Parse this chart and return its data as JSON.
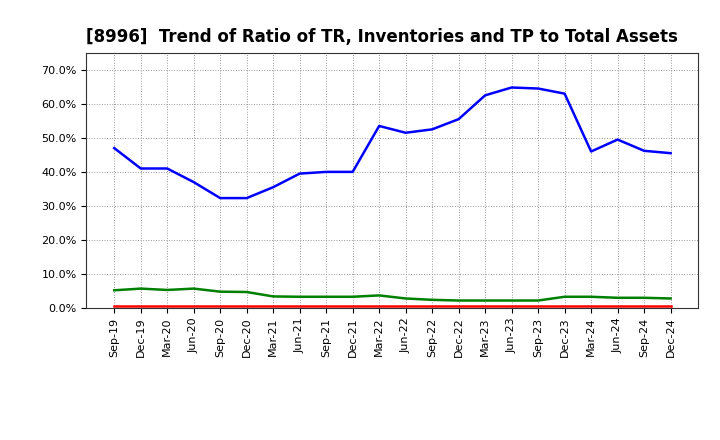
{
  "title": "[8996]  Trend of Ratio of TR, Inventories and TP to Total Assets",
  "x_labels": [
    "Sep-19",
    "Dec-19",
    "Mar-20",
    "Jun-20",
    "Sep-20",
    "Dec-20",
    "Mar-21",
    "Jun-21",
    "Sep-21",
    "Dec-21",
    "Mar-22",
    "Jun-22",
    "Sep-22",
    "Dec-22",
    "Mar-23",
    "Jun-23",
    "Sep-23",
    "Dec-23",
    "Mar-24",
    "Jun-24",
    "Sep-24",
    "Dec-24"
  ],
  "inventories": [
    0.47,
    0.41,
    0.41,
    0.37,
    0.323,
    0.323,
    0.355,
    0.395,
    0.4,
    0.4,
    0.535,
    0.515,
    0.525,
    0.555,
    0.625,
    0.648,
    0.645,
    0.63,
    0.46,
    0.495,
    0.462,
    0.455
  ],
  "trade_receivables": [
    0.007,
    0.007,
    0.007,
    0.007,
    0.007,
    0.007,
    0.007,
    0.007,
    0.007,
    0.007,
    0.007,
    0.007,
    0.007,
    0.007,
    0.007,
    0.007,
    0.007,
    0.007,
    0.007,
    0.007,
    0.007,
    0.007
  ],
  "trade_payables": [
    0.052,
    0.057,
    0.053,
    0.057,
    0.048,
    0.047,
    0.034,
    0.033,
    0.033,
    0.033,
    0.037,
    0.028,
    0.024,
    0.022,
    0.022,
    0.022,
    0.022,
    0.033,
    0.033,
    0.03,
    0.03,
    0.028
  ],
  "ylim": [
    0.0,
    0.75
  ],
  "yticks": [
    0.0,
    0.1,
    0.2,
    0.3,
    0.4,
    0.5,
    0.6,
    0.7
  ],
  "line_colors": {
    "inventories": "#0000ff",
    "trade_receivables": "#ff0000",
    "trade_payables": "#008000"
  },
  "background_color": "#ffffff",
  "grid_color": "#999999",
  "title_fontsize": 12,
  "tick_fontsize": 8,
  "legend_fontsize": 9
}
